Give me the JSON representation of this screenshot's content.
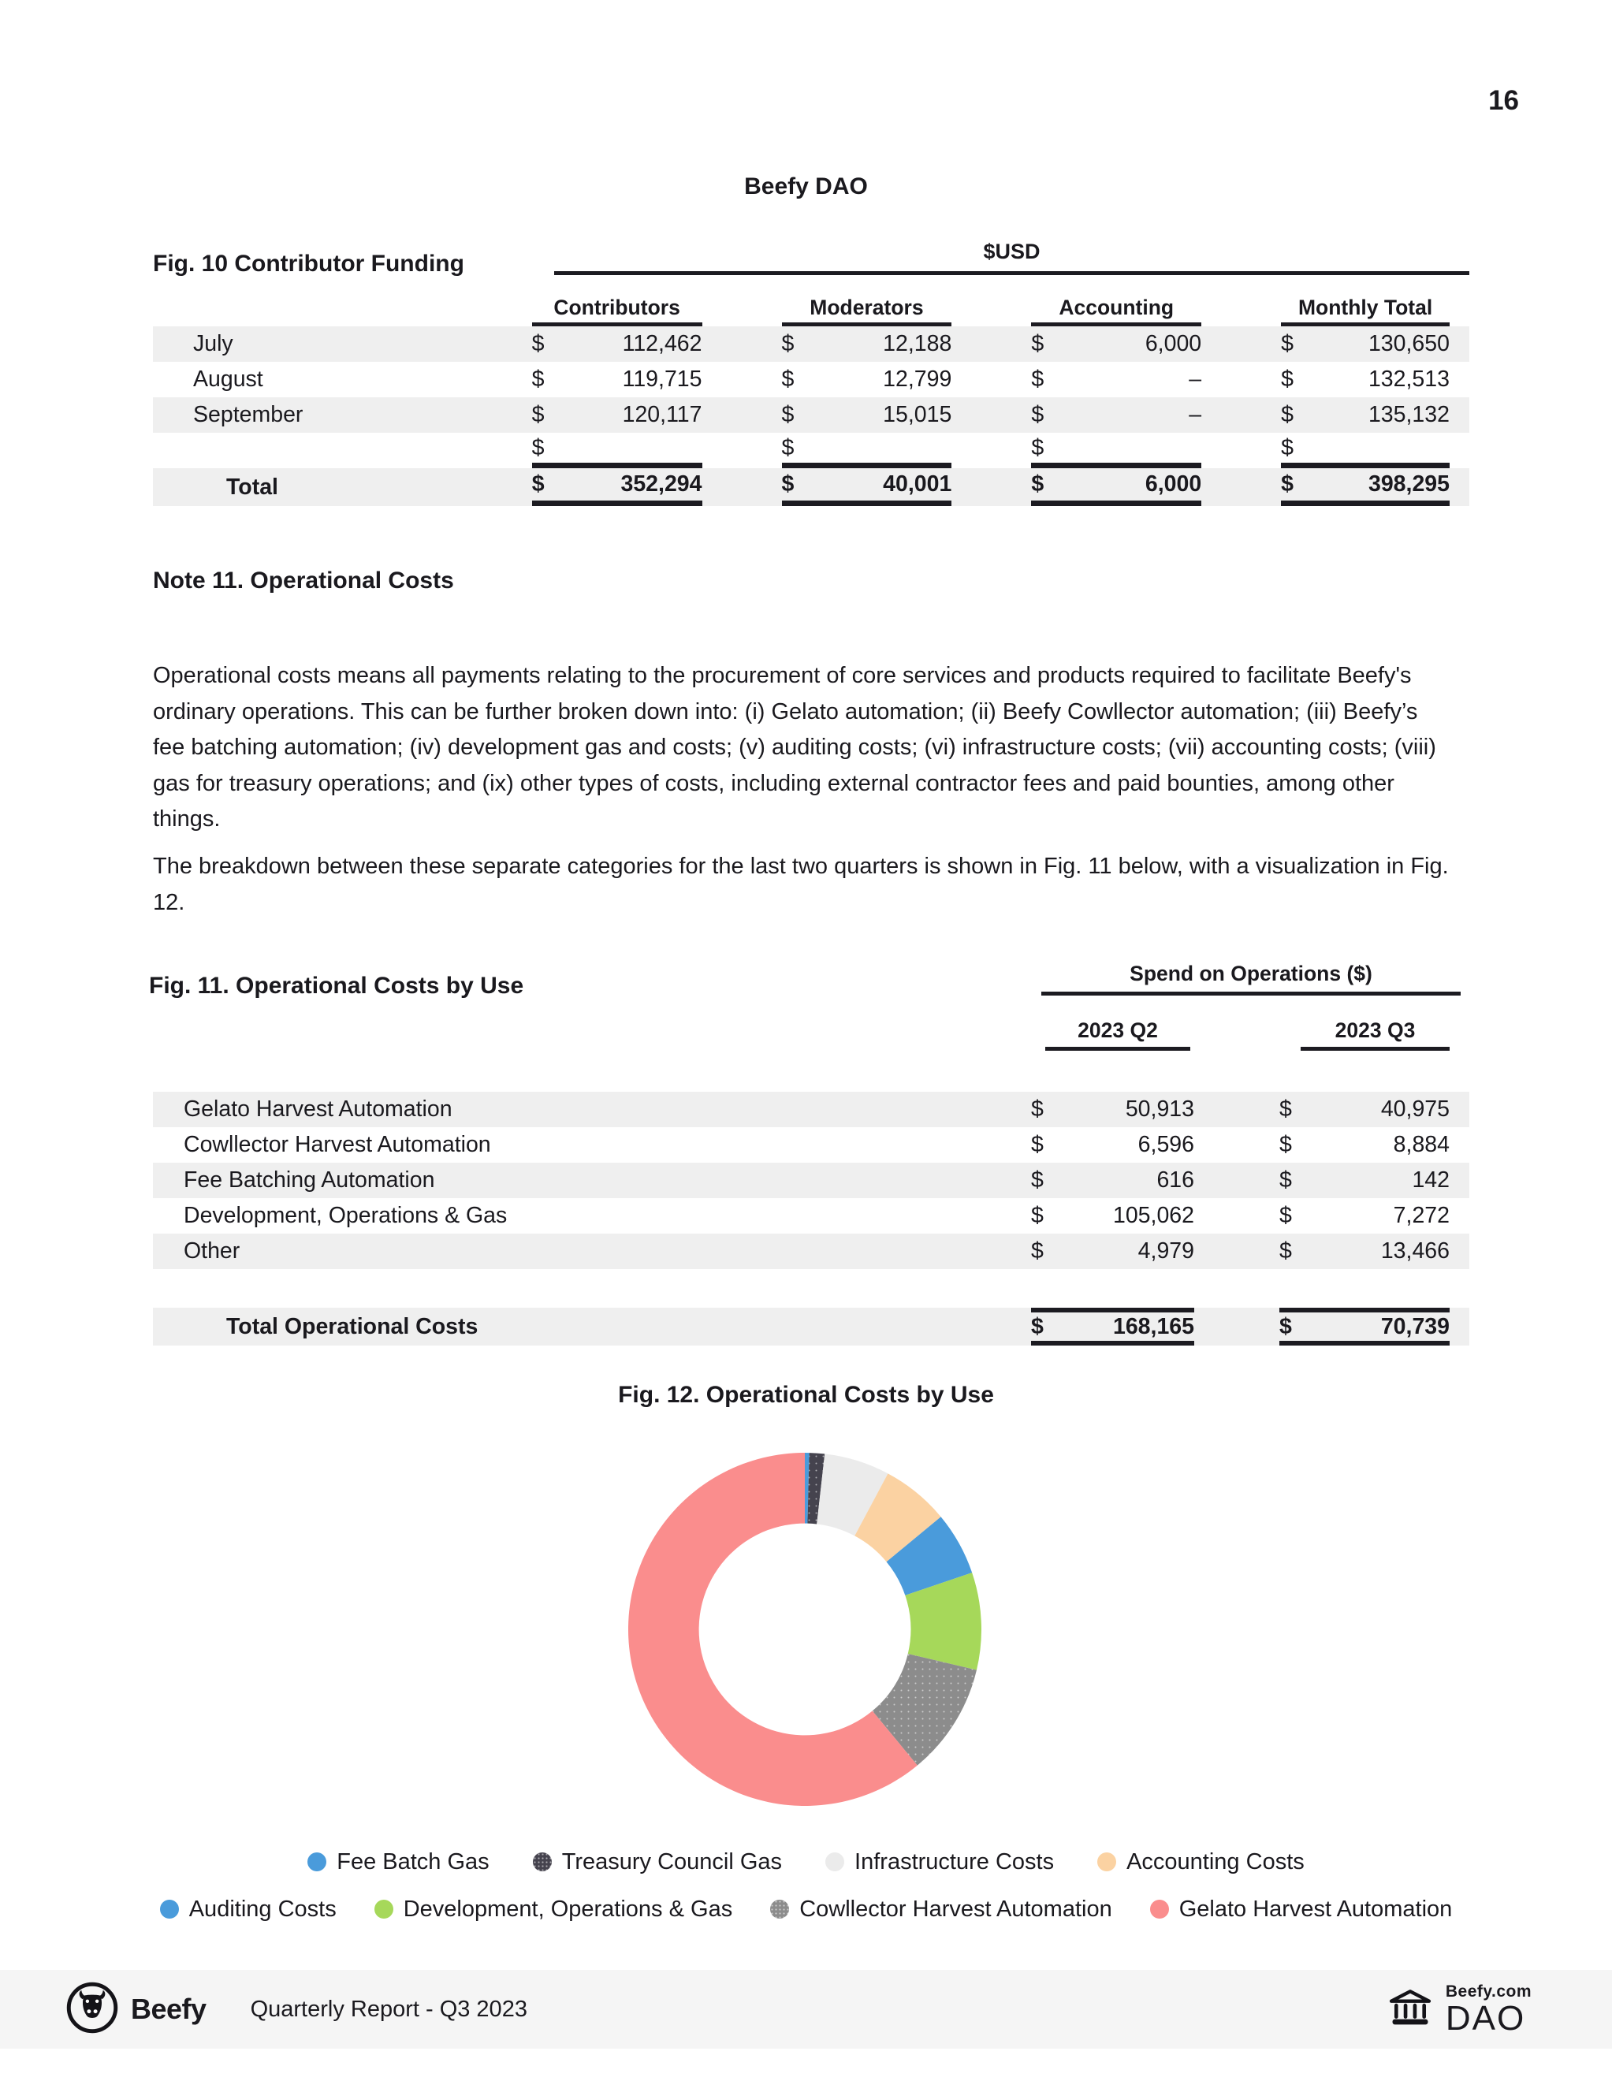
{
  "page_number": "16",
  "title": "Beefy DAO",
  "fig10": {
    "caption": "Fig. 10 Contributor Funding",
    "unit_header": "$USD",
    "currency_symbol": "$",
    "columns": [
      "Contributors",
      "Moderators",
      "Accounting",
      "Monthly Total"
    ],
    "rows": [
      {
        "label": "July",
        "values": [
          "112,462",
          "12,188",
          "6,000",
          "130,650"
        ]
      },
      {
        "label": "August",
        "values": [
          "119,715",
          "12,799",
          "–",
          "132,513"
        ]
      },
      {
        "label": "September",
        "values": [
          "120,117",
          "15,015",
          "–",
          "135,132"
        ]
      },
      {
        "label": "",
        "values": [
          "",
          "",
          "",
          ""
        ],
        "blank": true
      },
      {
        "label": "Total",
        "values": [
          "352,294",
          "40,001",
          "6,000",
          "398,295"
        ],
        "total": true
      }
    ]
  },
  "note11": {
    "heading": "Note 11. Operational Costs",
    "paragraph1": "Operational costs means all payments relating to the procurement of core services and products required to facilitate Beefy's ordinary operations. This can be further broken down into: (i) Gelato automation; (ii) Beefy Cowllector automation; (iii) Beefy’s fee batching automation; (iv) development gas and costs; (v) auditing costs; (vi) infrastructure costs; (vii) accounting costs; (viii) gas for treasury operations; and (ix) other types of costs, including external contractor fees and paid bounties, among other things.",
    "paragraph2": "The breakdown between these separate categories for the last two quarters is shown in Fig. 11 below, with a visualization in Fig. 12."
  },
  "fig11": {
    "caption": "Fig. 11. Operational Costs by Use",
    "group_header": "Spend on Operations ($)",
    "currency_symbol": "$",
    "columns": [
      "2023 Q2",
      "2023 Q3"
    ],
    "rows": [
      {
        "label": "Gelato Harvest Automation",
        "values": [
          "50,913",
          "40,975"
        ]
      },
      {
        "label": "Cowllector Harvest Automation",
        "values": [
          "6,596",
          "8,884"
        ]
      },
      {
        "label": "Fee Batching Automation",
        "values": [
          "616",
          "142"
        ]
      },
      {
        "label": "Development, Operations & Gas",
        "values": [
          "105,062",
          "7,272"
        ]
      },
      {
        "label": "Other",
        "values": [
          "4,979",
          "13,466"
        ]
      }
    ],
    "total_row": {
      "label": "Total Operational Costs",
      "values": [
        "168,165",
        "70,739"
      ]
    }
  },
  "fig12": {
    "caption": "Fig. 12. Operational Costs by Use"
  },
  "chart_data": {
    "type": "pie",
    "subtype": "donut",
    "title": "Fig. 12. Operational Costs by Use",
    "hole_ratio": 0.6,
    "start_angle_deg": 0,
    "direction": "clockwise",
    "legend_position": "bottom",
    "segments": [
      {
        "label": "Fee Batch Gas",
        "percent": 0.4,
        "color": "#4a9bdb"
      },
      {
        "label": "Treasury Council Gas",
        "percent": 1.4,
        "color": "#45434e",
        "pattern": "dots"
      },
      {
        "label": "Infrastructure Costs",
        "percent": 6.0,
        "color": "#ebebeb"
      },
      {
        "label": "Accounting Costs",
        "percent": 6.2,
        "color": "#fbd2a2"
      },
      {
        "label": "Auditing Costs",
        "percent": 5.8,
        "color": "#4a9bdb"
      },
      {
        "label": "Development, Operations & Gas",
        "percent": 8.9,
        "color": "#a6d85a"
      },
      {
        "label": "Cowllector Harvest Automation",
        "percent": 10.3,
        "color": "#8c8c8c",
        "pattern": "dots"
      },
      {
        "label": "Gelato Harvest Automation",
        "percent": 61.0,
        "color": "#fa8d8d"
      }
    ]
  },
  "legend": {
    "rows": [
      [
        {
          "label": "Fee Batch Gas",
          "color": "#4a9bdb"
        },
        {
          "label": "Treasury Council Gas",
          "color": "#45434e",
          "pattern": "dots"
        },
        {
          "label": "Infrastructure Costs",
          "color": "#ebebeb"
        },
        {
          "label": "Accounting Costs",
          "color": "#fbd2a2"
        }
      ],
      [
        {
          "label": "Auditing Costs",
          "color": "#4a9bdb"
        },
        {
          "label": "Development, Operations & Gas",
          "color": "#a6d85a"
        },
        {
          "label": "Cowllector Harvest Automation",
          "color": "#8c8c8c",
          "pattern": "dots"
        },
        {
          "label": "Gelato Harvest Automation",
          "color": "#fa8d8d"
        }
      ]
    ]
  },
  "footer": {
    "brand": "Beefy",
    "report_title": "Quarterly Report - Q3 2023",
    "dao_top": "Beefy.com",
    "dao_bottom": "DAO"
  },
  "colors": {
    "text": "#1a191e",
    "row_shading": "#efefef",
    "rule": "#1c1b21",
    "footer_bg": "#f5f5f5"
  }
}
